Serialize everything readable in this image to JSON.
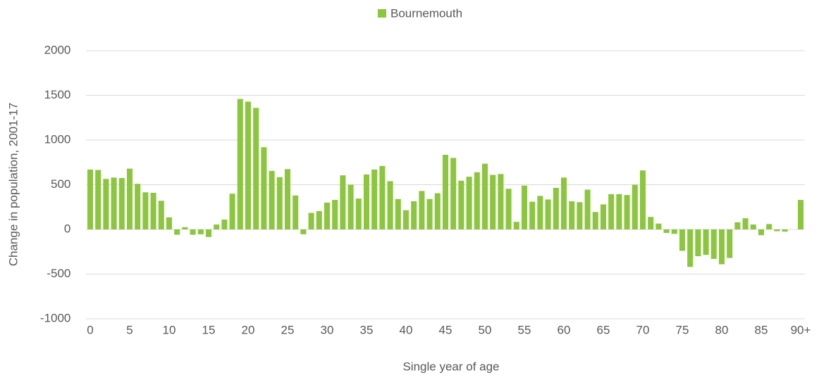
{
  "chart_data": {
    "type": "bar",
    "series": [
      {
        "name": "Bournemouth",
        "color": "#8cc63f",
        "values": [
          670,
          665,
          565,
          580,
          575,
          680,
          510,
          415,
          410,
          320,
          135,
          -60,
          25,
          -60,
          -55,
          -85,
          55,
          110,
          400,
          1460,
          1430,
          1360,
          920,
          655,
          585,
          675,
          380,
          -55,
          185,
          205,
          300,
          330,
          605,
          500,
          345,
          615,
          670,
          710,
          540,
          340,
          215,
          315,
          430,
          340,
          405,
          835,
          800,
          545,
          590,
          640,
          735,
          610,
          620,
          455,
          85,
          490,
          310,
          375,
          335,
          465,
          580,
          315,
          305,
          445,
          195,
          280,
          395,
          395,
          385,
          500,
          660,
          140,
          65,
          -40,
          -50,
          -240,
          -420,
          -300,
          -285,
          -330,
          -390,
          -320,
          80,
          125,
          55,
          -65,
          60,
          -20,
          -25,
          0,
          330
        ]
      }
    ],
    "categories": [
      "0",
      null,
      null,
      null,
      null,
      "5",
      null,
      null,
      null,
      null,
      "10",
      null,
      null,
      null,
      null,
      "15",
      null,
      null,
      null,
      null,
      "20",
      null,
      null,
      null,
      null,
      "25",
      null,
      null,
      null,
      null,
      "30",
      null,
      null,
      null,
      null,
      "35",
      null,
      null,
      null,
      null,
      "40",
      null,
      null,
      null,
      null,
      "45",
      null,
      null,
      null,
      null,
      "50",
      null,
      null,
      null,
      null,
      "55",
      null,
      null,
      null,
      null,
      "60",
      null,
      null,
      null,
      null,
      "65",
      null,
      null,
      null,
      null,
      "70",
      null,
      null,
      null,
      null,
      "75",
      null,
      null,
      null,
      null,
      "80",
      null,
      null,
      null,
      null,
      "85",
      null,
      null,
      null,
      null,
      "90+"
    ],
    "ylim": [
      -1000,
      2000
    ],
    "yticks": [
      -1000,
      -500,
      0,
      500,
      1000,
      1500,
      2000
    ],
    "grid": true,
    "x_label": "Single year of age",
    "y_label": "Change in population, 2001-17",
    "legend": "top"
  }
}
